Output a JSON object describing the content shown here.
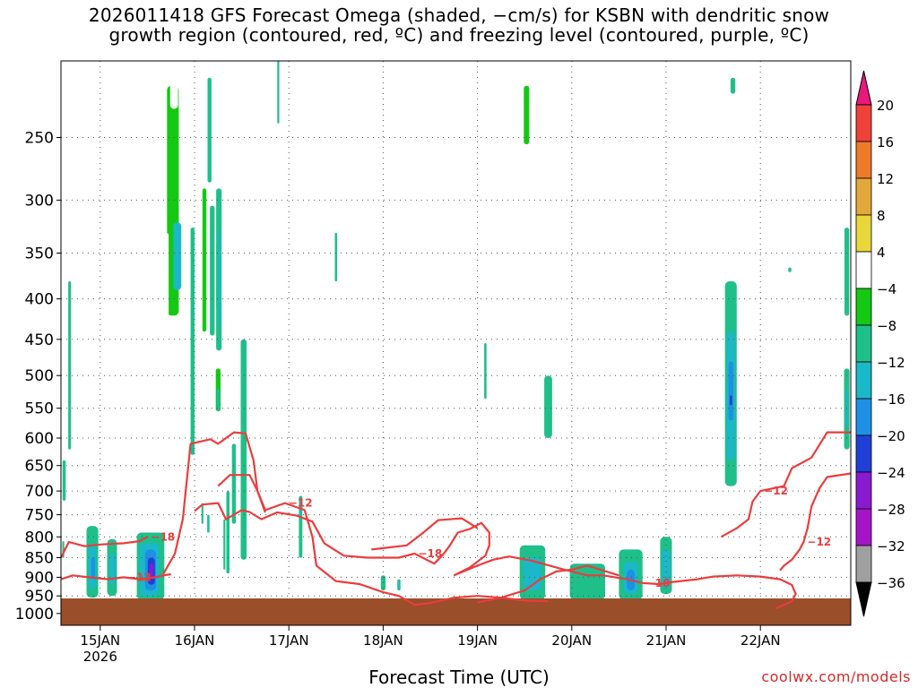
{
  "chart_data": {
    "type": "heatmap",
    "title_lines": [
      "2026011418 GFS Forecast Omega (shaded, −cm/s) for KSBN with dendritic snow",
      "growth region (contoured, red, ºC) and freezing level (contoured, purple, ºC)"
    ],
    "xlabel": "Forecast Time (UTC)",
    "ylabel": "",
    "y_axis": {
      "scale": "pressure",
      "range": [
        1035,
        200
      ],
      "ticks": [
        250,
        300,
        350,
        400,
        450,
        500,
        550,
        600,
        650,
        700,
        750,
        800,
        850,
        900,
        950,
        1000
      ]
    },
    "x_axis": {
      "range_hours": [
        0,
        201
      ],
      "ticks": [
        {
          "label": "15JAN",
          "sub": "2026",
          "hour": 10
        },
        {
          "label": "16JAN",
          "hour": 34
        },
        {
          "label": "17JAN",
          "hour": 58
        },
        {
          "label": "18JAN",
          "hour": 82
        },
        {
          "label": "19JAN",
          "hour": 106
        },
        {
          "label": "20JAN",
          "hour": 130
        },
        {
          "label": "21JAN",
          "hour": 154
        },
        {
          "label": "22JAN",
          "hour": 178
        }
      ]
    },
    "colorbar": {
      "labels": [
        "20",
        "16",
        "12",
        "8",
        "4",
        "−4",
        "−8",
        "−12",
        "−16",
        "−20",
        "−24",
        "−28",
        "−32",
        "−36"
      ],
      "colors": [
        "#e8187c",
        "#f0413a",
        "#ee7a2b",
        "#e2a93a",
        "#e8d73a",
        "#ffffff",
        "#14c814",
        "#1fbf8a",
        "#1ab8c8",
        "#1e90e6",
        "#1f3fd6",
        "#8a1ad0",
        "#a614c8",
        "#a0a0a0",
        "#000000"
      ]
    },
    "omega_regions": [
      {
        "t": 28.5,
        "w": 3.0,
        "p1": 215,
        "p2": 420,
        "c": 6
      },
      {
        "t": 29.6,
        "w": 2.0,
        "p1": 320,
        "p2": 390,
        "c": 8
      },
      {
        "t": 28.8,
        "w": 2.0,
        "p1": 180,
        "p2": 230,
        "c": 5
      },
      {
        "t": 33.0,
        "w": 1.4,
        "p1": 265,
        "p2": 490,
        "c": 5
      },
      {
        "t": 26.8,
        "w": 1.2,
        "p1": 330,
        "p2": 460,
        "c": 5
      },
      {
        "t": 21.8,
        "w": 1.2,
        "p1": 515,
        "p2": 565,
        "c": 5
      },
      {
        "t": 30.6,
        "w": 1.4,
        "p1": 640,
        "p2": 700,
        "c": 5
      },
      {
        "t": 36.5,
        "w": 1.0,
        "p1": 290,
        "p2": 440,
        "c": 6
      },
      {
        "t": 40.0,
        "w": 1.2,
        "p1": 490,
        "p2": 555,
        "c": 6
      },
      {
        "t": 40.0,
        "w": 0.6,
        "p1": 520,
        "p2": 555,
        "c": 8
      },
      {
        "t": 24.5,
        "w": 1.6,
        "p1": 750,
        "p2": 855,
        "c": 5
      },
      {
        "t": 24.8,
        "w": 1.0,
        "p1": 790,
        "p2": 840,
        "c": 7
      },
      {
        "t": 43.0,
        "w": 0.8,
        "p1": 205,
        "p2": 280,
        "c": 5
      },
      {
        "t": 39.5,
        "w": 0.8,
        "p1": 560,
        "p2": 600,
        "c": 5
      },
      {
        "t": 47.5,
        "w": 0.7,
        "p1": 455,
        "p2": 510,
        "c": 5
      },
      {
        "t": 99.5,
        "w": 2.2,
        "p1": 300,
        "p2": 390,
        "c": 5
      },
      {
        "t": 92.5,
        "w": 1.0,
        "p1": 400,
        "p2": 510,
        "c": 5
      },
      {
        "t": 94.0,
        "w": 1.0,
        "p1": 605,
        "p2": 715,
        "c": 5
      },
      {
        "t": 116.5,
        "w": 2.0,
        "p1": 180,
        "p2": 270,
        "c": 5
      },
      {
        "t": 118.5,
        "w": 1.4,
        "p1": 215,
        "p2": 255,
        "c": 6
      },
      {
        "t": 124.0,
        "w": 4.0,
        "p1": 455,
        "p2": 700,
        "c": 5
      },
      {
        "t": 124.0,
        "w": 2.0,
        "p1": 500,
        "p2": 600,
        "c": 7
      },
      {
        "t": 130.0,
        "w": 4.5,
        "p1": 640,
        "p2": 760,
        "c": 5
      },
      {
        "t": 134.0,
        "w": 3.0,
        "p1": 645,
        "p2": 810,
        "c": 5
      },
      {
        "t": 154.0,
        "w": 3.5,
        "p1": 385,
        "p2": 770,
        "c": 5
      },
      {
        "t": 150.5,
        "w": 1.2,
        "p1": 790,
        "p2": 860,
        "c": 5
      },
      {
        "t": 163.5,
        "w": 0.8,
        "p1": 350,
        "p2": 405,
        "c": 5
      },
      {
        "t": 166.5,
        "w": 2.6,
        "p1": 270,
        "p2": 420,
        "c": 5
      },
      {
        "t": 174.0,
        "w": 1.2,
        "p1": 300,
        "p2": 365,
        "c": 5
      },
      {
        "t": 175.0,
        "w": 1.4,
        "p1": 620,
        "p2": 655,
        "c": 5
      },
      {
        "t": 175.0,
        "w": 0.8,
        "p1": 705,
        "p2": 770,
        "c": 5
      },
      {
        "t": 180.0,
        "w": 1.2,
        "p1": 290,
        "p2": 405,
        "c": 5
      },
      {
        "t": 92.0,
        "w": 3.0,
        "p1": 845,
        "p2": 935,
        "c": 5
      },
      {
        "t": 101.0,
        "w": 3.5,
        "p1": 900,
        "p2": 945,
        "c": 5
      },
      {
        "t": 33.5,
        "w": 1.0,
        "p1": 325,
        "p2": 630,
        "c": 7
      },
      {
        "t": 37.8,
        "w": 1.0,
        "p1": 210,
        "p2": 285,
        "c": 7
      },
      {
        "t": 38.5,
        "w": 1.2,
        "p1": 305,
        "p2": 445,
        "c": 7
      },
      {
        "t": 40.2,
        "w": 1.4,
        "p1": 290,
        "p2": 465,
        "c": 7
      },
      {
        "t": 39.8,
        "w": 0.6,
        "p1": 340,
        "p2": 410,
        "c": 7
      },
      {
        "t": 40.2,
        "w": 0.5,
        "p1": 330,
        "p2": 430,
        "c": 8
      },
      {
        "t": 46.5,
        "w": 1.5,
        "p1": 450,
        "p2": 855,
        "c": 7
      },
      {
        "t": 44.0,
        "w": 1.0,
        "p1": 610,
        "p2": 770,
        "c": 7
      },
      {
        "t": 42.5,
        "w": 0.8,
        "p1": 700,
        "p2": 890,
        "c": 7
      },
      {
        "t": 41.6,
        "w": 0.5,
        "p1": 760,
        "p2": 880,
        "c": 7
      },
      {
        "t": 37.5,
        "w": 0.6,
        "p1": 750,
        "p2": 790,
        "c": 7
      },
      {
        "t": 36.0,
        "w": 0.5,
        "p1": 725,
        "p2": 770,
        "c": 7
      },
      {
        "t": 55.3,
        "w": 0.5,
        "p1": 200,
        "p2": 240,
        "c": 7
      },
      {
        "t": 61.0,
        "w": 0.9,
        "p1": 710,
        "p2": 850,
        "c": 7
      },
      {
        "t": 61.0,
        "w": 0.5,
        "p1": 720,
        "p2": 760,
        "c": 8
      },
      {
        "t": 70.0,
        "w": 0.6,
        "p1": 330,
        "p2": 380,
        "c": 7
      },
      {
        "t": 108.0,
        "w": 0.6,
        "p1": 455,
        "p2": 535,
        "c": 7
      },
      {
        "t": 2.2,
        "w": 0.7,
        "p1": 380,
        "p2": 620,
        "c": 7
      },
      {
        "t": 0.8,
        "w": 0.8,
        "p1": 640,
        "p2": 720,
        "c": 7
      },
      {
        "t": 0.6,
        "w": 0.5,
        "p1": 810,
        "p2": 850,
        "c": 7
      },
      {
        "t": 8.0,
        "w": 3.0,
        "p1": 775,
        "p2": 955,
        "c": 7
      },
      {
        "t": 8.0,
        "w": 2.0,
        "p1": 820,
        "p2": 930,
        "c": 8
      },
      {
        "t": 8.2,
        "w": 1.0,
        "p1": 850,
        "p2": 900,
        "c": 9
      },
      {
        "t": 13.0,
        "w": 2.5,
        "p1": 805,
        "p2": 950,
        "c": 7
      },
      {
        "t": 13.0,
        "w": 1.5,
        "p1": 840,
        "p2": 920,
        "c": 8
      },
      {
        "t": 22.8,
        "w": 7.0,
        "p1": 790,
        "p2": 960,
        "c": 7
      },
      {
        "t": 22.5,
        "w": 5.0,
        "p1": 815,
        "p2": 950,
        "c": 8
      },
      {
        "t": 22.8,
        "w": 2.8,
        "p1": 830,
        "p2": 935,
        "c": 9
      },
      {
        "t": 23.0,
        "w": 1.8,
        "p1": 850,
        "p2": 920,
        "c": 10
      },
      {
        "t": 23.0,
        "w": 1.0,
        "p1": 865,
        "p2": 905,
        "c": 11
      },
      {
        "t": 82.0,
        "w": 1.2,
        "p1": 895,
        "p2": 935,
        "c": 7
      },
      {
        "t": 86.0,
        "w": 0.8,
        "p1": 905,
        "p2": 935,
        "c": 7
      },
      {
        "t": 86.0,
        "w": 0.4,
        "p1": 910,
        "p2": 930,
        "c": 8
      },
      {
        "t": 120.0,
        "w": 6.5,
        "p1": 820,
        "p2": 960,
        "c": 7
      },
      {
        "t": 120.0,
        "w": 4.5,
        "p1": 850,
        "p2": 935,
        "c": 8
      },
      {
        "t": 134.0,
        "w": 9.0,
        "p1": 865,
        "p2": 960,
        "c": 7
      },
      {
        "t": 145.0,
        "w": 6.0,
        "p1": 830,
        "p2": 960,
        "c": 7
      },
      {
        "t": 145.0,
        "w": 3.5,
        "p1": 860,
        "p2": 945,
        "c": 8
      },
      {
        "t": 145.0,
        "w": 2.0,
        "p1": 880,
        "p2": 935,
        "c": 9
      },
      {
        "t": 154.0,
        "w": 3.0,
        "p1": 800,
        "p2": 945,
        "c": 7
      },
      {
        "t": 154.0,
        "w": 2.0,
        "p1": 830,
        "p2": 930,
        "c": 8
      },
      {
        "t": 170.5,
        "w": 3.0,
        "p1": 380,
        "p2": 690,
        "c": 7
      },
      {
        "t": 170.5,
        "w": 2.0,
        "p1": 440,
        "p2": 640,
        "c": 8
      },
      {
        "t": 170.5,
        "w": 1.2,
        "p1": 480,
        "p2": 570,
        "c": 9
      },
      {
        "t": 170.5,
        "w": 0.6,
        "p1": 530,
        "p2": 545,
        "c": 10
      },
      {
        "t": 171.0,
        "w": 1.2,
        "p1": 210,
        "p2": 220,
        "c": 7
      },
      {
        "t": 185.5,
        "w": 0.8,
        "p1": 365,
        "p2": 370,
        "c": 7
      },
      {
        "t": 200.0,
        "w": 1.2,
        "p1": 325,
        "p2": 420,
        "c": 7
      },
      {
        "t": 200.0,
        "w": 1.4,
        "p1": 490,
        "p2": 620,
        "c": 7
      },
      {
        "t": 200.0,
        "w": 0.6,
        "p1": 520,
        "p2": 580,
        "c": 8
      }
    ],
    "dgz_contours": [
      {
        "label": "−18",
        "points": [
          [
            0,
            850
          ],
          [
            2,
            812
          ],
          [
            6,
            822
          ],
          [
            10,
            818
          ],
          [
            16,
            815
          ],
          [
            20,
            810
          ],
          [
            22,
            800
          ]
        ]
      },
      {
        "label": "−12",
        "points": [
          [
            0,
            905
          ],
          [
            3,
            895
          ],
          [
            7,
            900
          ],
          [
            12,
            905
          ],
          [
            16,
            900
          ],
          [
            20,
            905
          ],
          [
            24,
            900
          ],
          [
            26,
            895
          ],
          [
            28,
            892
          ]
        ]
      },
      {
        "label": "−12",
        "points": [
          [
            26,
            892
          ],
          [
            29,
            840
          ],
          [
            31,
            760
          ],
          [
            32,
            680
          ],
          [
            33,
            610
          ],
          [
            38,
            602
          ],
          [
            40,
            610
          ],
          [
            44,
            590
          ],
          [
            47,
            592
          ],
          [
            49,
            640
          ],
          [
            50,
            700
          ],
          [
            52,
            740
          ],
          [
            57,
            725
          ],
          [
            62,
            740
          ],
          [
            64,
            800
          ],
          [
            65,
            870
          ],
          [
            70,
            910
          ],
          [
            76,
            918
          ],
          [
            82,
            940
          ],
          [
            86,
            950
          ],
          [
            90,
            975
          ],
          [
            94,
            970
          ],
          [
            100,
            955
          ],
          [
            106,
            950
          ],
          [
            112,
            955
          ],
          [
            118,
            963
          ],
          [
            124,
            965
          ]
        ]
      },
      {
        "label": "",
        "points": [
          [
            34,
            742
          ],
          [
            36,
            728
          ],
          [
            40,
            725
          ],
          [
            42,
            760
          ],
          [
            46,
            740
          ],
          [
            48,
            744
          ]
        ]
      },
      {
        "label": "",
        "points": [
          [
            40,
            690
          ],
          [
            43,
            668
          ],
          [
            48,
            668
          ],
          [
            50,
            700
          ],
          [
            52,
            745
          ]
        ]
      },
      {
        "label": "−18",
        "points": [
          [
            48,
            744
          ],
          [
            51,
            760
          ],
          [
            55,
            745
          ],
          [
            60,
            752
          ],
          [
            64,
            765
          ],
          [
            67,
            815
          ],
          [
            72,
            845
          ],
          [
            78,
            850
          ],
          [
            86,
            850
          ],
          [
            90,
            840
          ],
          [
            95,
            865
          ],
          [
            97,
            845
          ],
          [
            99,
            820
          ],
          [
            101,
            790
          ],
          [
            104,
            782
          ],
          [
            107,
            768
          ],
          [
            109,
            790
          ],
          [
            109,
            820
          ],
          [
            108,
            845
          ],
          [
            104,
            875
          ],
          [
            100,
            895
          ]
        ]
      },
      {
        "label": "",
        "points": [
          [
            79,
            830
          ],
          [
            88,
            820
          ],
          [
            92,
            792
          ],
          [
            96,
            762
          ],
          [
            102,
            758
          ],
          [
            106,
            780
          ]
        ]
      },
      {
        "label": "−18",
        "points": [
          [
            100,
            895
          ],
          [
            106,
            870
          ],
          [
            110,
            855
          ],
          [
            114,
            847
          ],
          [
            120,
            858
          ],
          [
            128,
            880
          ],
          [
            134,
            895
          ],
          [
            138,
            895
          ],
          [
            144,
            905
          ],
          [
            148,
            915
          ],
          [
            152,
            918
          ],
          [
            156,
            912
          ],
          [
            162,
            905
          ],
          [
            166,
            898
          ],
          [
            172,
            895
          ],
          [
            178,
            898
          ],
          [
            183,
            905
          ],
          [
            186,
            920
          ],
          [
            187,
            945
          ],
          [
            186,
            965
          ],
          [
            182,
            985
          ]
        ]
      },
      {
        "label": "",
        "points": [
          [
            106,
            968
          ],
          [
            112,
            955
          ],
          [
            118,
            935
          ],
          [
            122,
            905
          ],
          [
            126,
            885
          ],
          [
            130,
            880
          ],
          [
            134,
            870
          ],
          [
            142,
            895
          ]
        ]
      },
      {
        "label": "−12",
        "points": [
          [
            168,
            800
          ],
          [
            172,
            780
          ],
          [
            175,
            760
          ],
          [
            176,
            722
          ],
          [
            178,
            700
          ],
          [
            184,
            690
          ],
          [
            186,
            655
          ],
          [
            191,
            635
          ],
          [
            195,
            590
          ],
          [
            201,
            590
          ]
        ]
      },
      {
        "label": "−12",
        "points": [
          [
            183,
            882
          ],
          [
            184,
            870
          ],
          [
            186,
            855
          ],
          [
            188,
            830
          ],
          [
            189,
            812
          ],
          [
            190,
            780
          ],
          [
            191,
            732
          ],
          [
            193,
            695
          ],
          [
            195,
            672
          ],
          [
            201,
            665
          ]
        ]
      }
    ]
  },
  "credit": "coolwx.com/models"
}
